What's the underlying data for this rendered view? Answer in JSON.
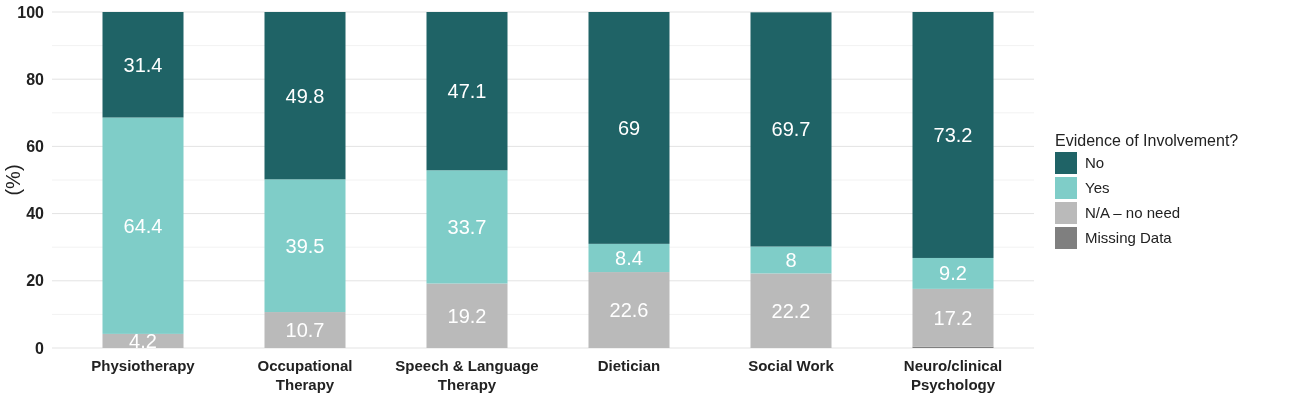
{
  "chart_data": {
    "type": "bar",
    "stacked": true,
    "ylabel": "(%)",
    "legend_title": "Evidence of Involvement?",
    "legend": "right",
    "grid": "y",
    "categories": [
      "Physiotherapy",
      "Occupational Therapy",
      "Speech & Language Therapy",
      "Dietician",
      "Social Work",
      "Neuro/clinical Psychology"
    ],
    "ylim": [
      0,
      100
    ],
    "yticks": [
      0,
      {
        "value": 10,
        "label": null
      },
      20,
      {
        "value": 30,
        "label": null
      },
      40,
      {
        "value": 50,
        "label": null
      },
      60,
      {
        "value": 70,
        "label": null
      },
      80,
      {
        "value": 90,
        "label": null
      },
      100
    ],
    "series": [
      {
        "name": "Missing Data",
        "color": "#7f7f7f",
        "values": [
          0,
          0,
          0,
          0,
          0,
          0.4
        ],
        "value_labels": [
          null,
          null,
          null,
          null,
          null,
          null
        ]
      },
      {
        "name": "N/A – no need",
        "color": "#bababa",
        "values": [
          4.2,
          10.7,
          19.2,
          22.6,
          22.2,
          17.2
        ],
        "value_labels": [
          "4.2",
          "10.7",
          "19.2",
          "22.6",
          "22.2",
          "17.2"
        ]
      },
      {
        "name": "Yes",
        "color": "#7fcdc8",
        "values": [
          64.4,
          39.5,
          33.7,
          8.4,
          8,
          9.2
        ],
        "value_labels": [
          "64.4",
          "39.5",
          "33.7",
          "8.4",
          "8",
          "9.2"
        ]
      },
      {
        "name": "No",
        "color": "#1f6366",
        "values": [
          31.4,
          49.8,
          47.1,
          69,
          69.7,
          73.2
        ],
        "value_labels": [
          "31.4",
          "49.8",
          "47.1",
          "69",
          "69.7",
          "73.2"
        ]
      }
    ]
  }
}
